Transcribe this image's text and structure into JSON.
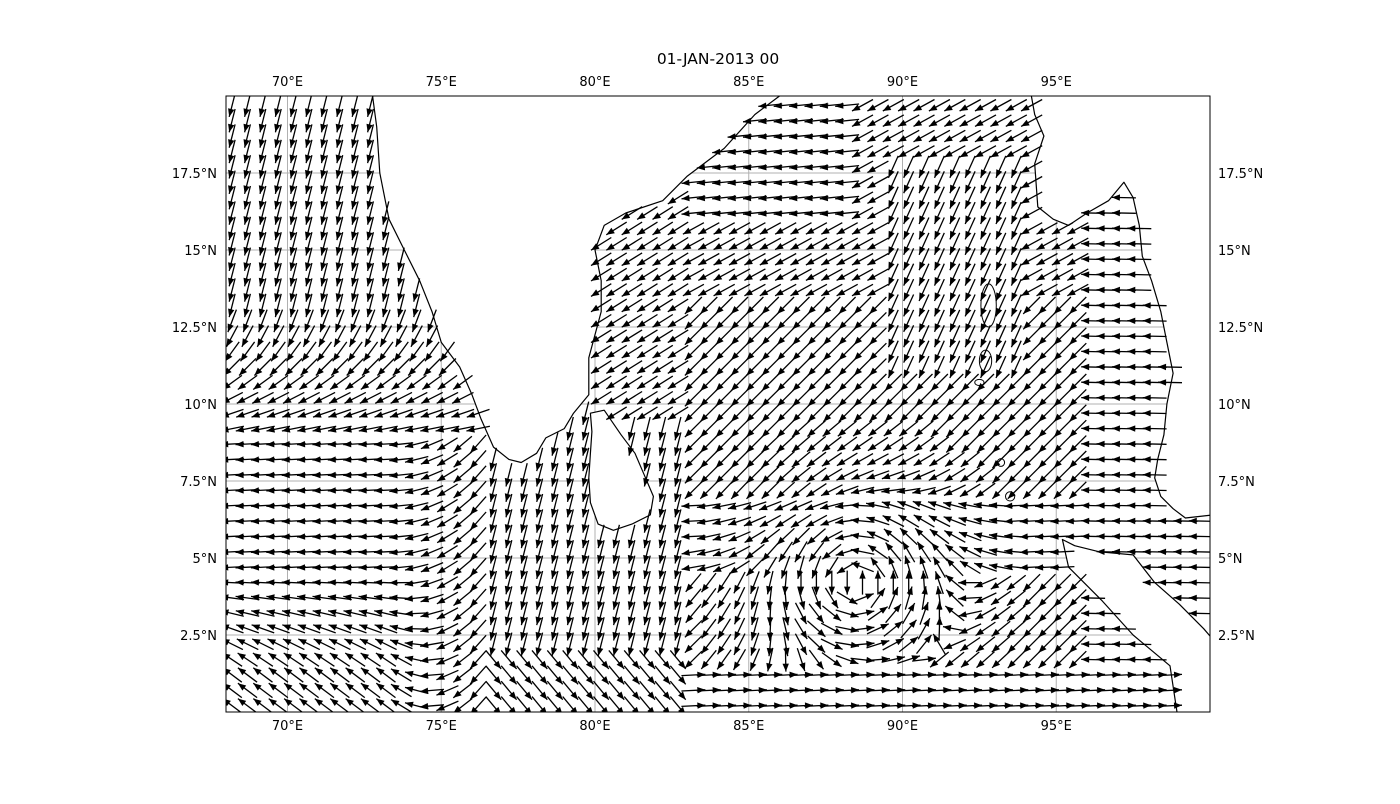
{
  "title": "01-JAN-2013 00",
  "map": {
    "projection": "PlateCarree",
    "extent": {
      "lon": [
        68,
        100
      ],
      "lat": [
        0,
        20
      ]
    },
    "gridlines": true,
    "coastline_color": "#000000",
    "gridline_color": "#b0b0b0",
    "arrow_color": "#000000",
    "lon_ticks": [
      {
        "value": 70,
        "label": "70°E"
      },
      {
        "value": 75,
        "label": "75°E"
      },
      {
        "value": 80,
        "label": "80°E"
      },
      {
        "value": 85,
        "label": "85°E"
      },
      {
        "value": 90,
        "label": "90°E"
      },
      {
        "value": 95,
        "label": "95°E"
      }
    ],
    "lat_ticks": [
      {
        "value": 2.5,
        "label": "2.5°N"
      },
      {
        "value": 5,
        "label": "5°N"
      },
      {
        "value": 7.5,
        "label": "7.5°N"
      },
      {
        "value": 10,
        "label": "10°N"
      },
      {
        "value": 12.5,
        "label": "12.5°N"
      },
      {
        "value": 15,
        "label": "15°N"
      },
      {
        "value": 17.5,
        "label": "17.5°N"
      }
    ],
    "quiver_grid_step_deg": 0.5
  }
}
